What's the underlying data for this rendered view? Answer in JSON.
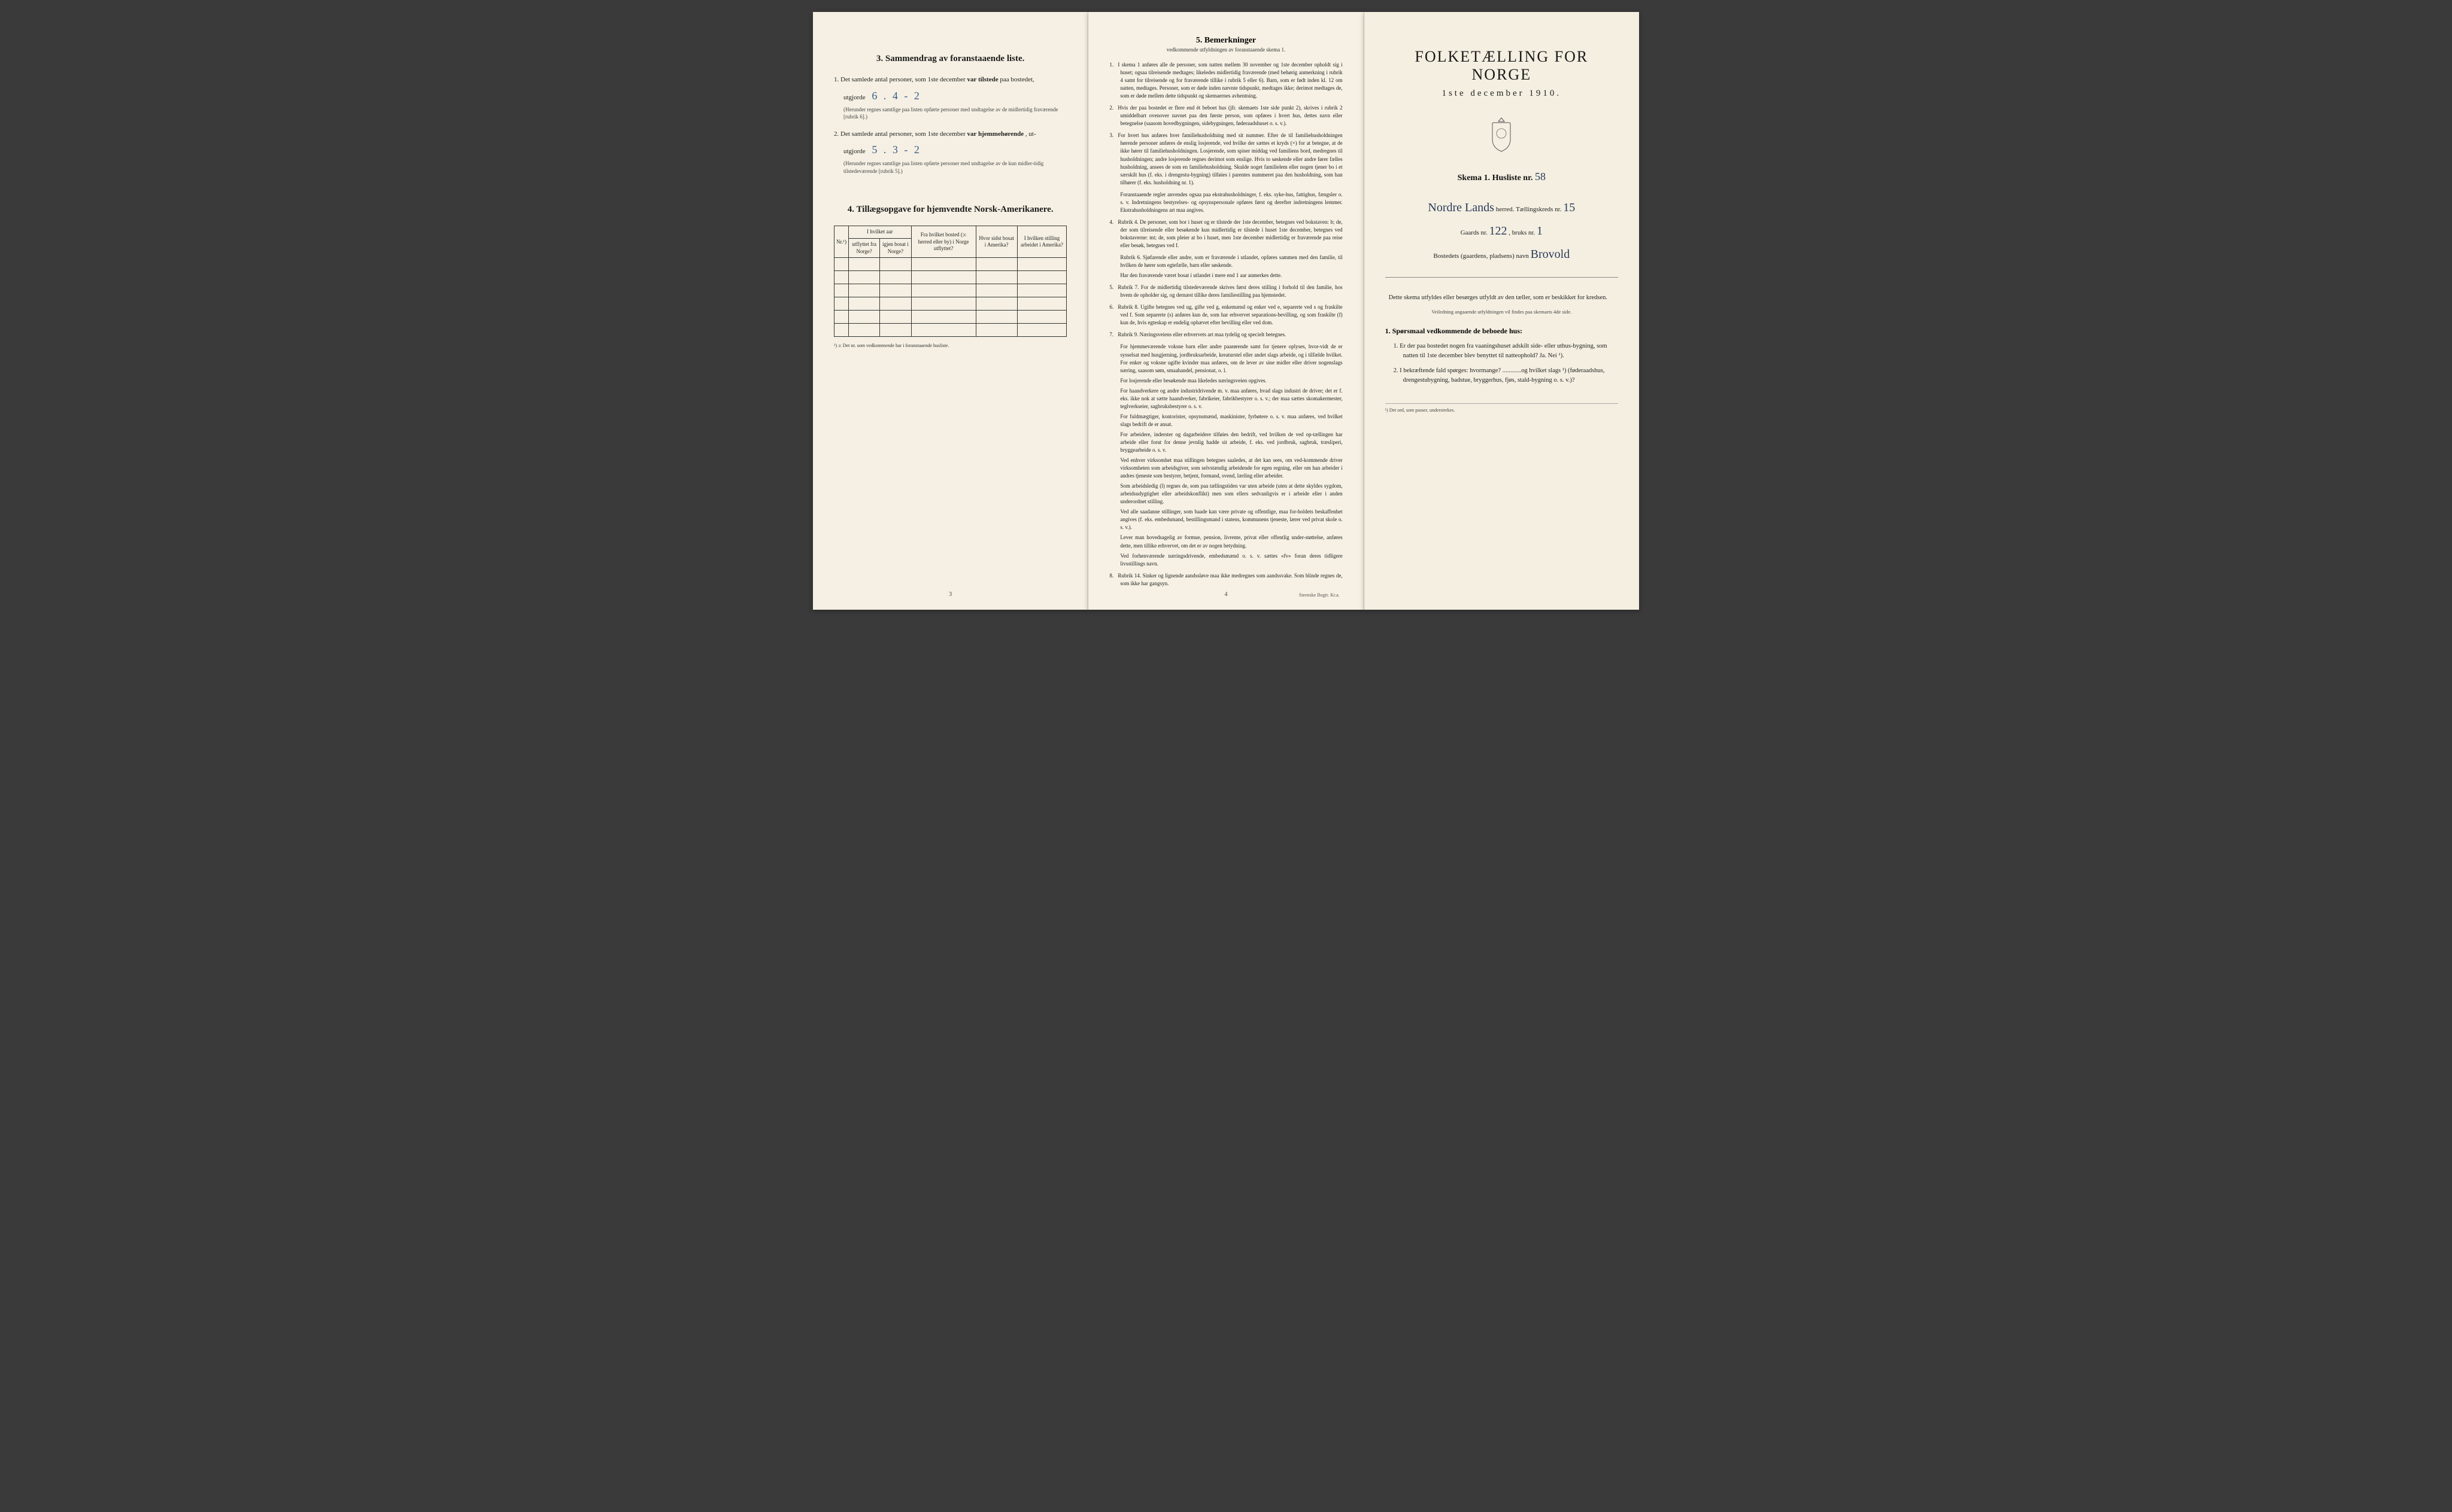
{
  "colors": {
    "paper": "#f4efe2",
    "ink": "#1a1a1a",
    "handwriting": "#3a5a8a",
    "border": "#333333"
  },
  "leftPage": {
    "section3": {
      "heading": "3.  Sammendrag av foranstaaende liste.",
      "item1_prefix": "1.  Det samlede antal personer, som 1ste december",
      "item1_bold": "var tilstede",
      "item1_suffix": "paa bostedet,",
      "utgjorde": "utgjorde",
      "hand1": "6 . 4 - 2",
      "note1": "(Herunder regnes samtlige paa listen opførte personer med undtagelse av de midlertidig fraværende [rubrik 6].)",
      "item2_prefix": "2.  Det samlede antal personer, som 1ste december",
      "item2_bold": "var hjemmehørende",
      "item2_suffix": ", ut-",
      "hand2": "5 .    3 - 2",
      "note2": "(Herunder regnes samtlige paa listen opførte personer med undtagelse av de kun midler-tidig tilstedeværende [rubrik 5].)"
    },
    "section4": {
      "heading": "4.  Tillægsopgave for hjemvendte Norsk-Amerikanere.",
      "cols": [
        "Nr.¹)",
        "I hvilket aar",
        "Fra hvilket bosted (ɔ: herred eller by) i Norge utflyttet?",
        "Hvor sidst bosat i Amerika?",
        "I hvilken stilling arbeidet i Amerika?"
      ],
      "subcols": [
        "utflyttet fra Norge?",
        "igjen bosat i Norge?"
      ],
      "blank_rows": 6,
      "footnote": "¹) ɔ: Det nr. som vedkommende har i foranstaaende husliste."
    },
    "pagenum": "3"
  },
  "middlePage": {
    "heading": "5.  Bemerkninger",
    "sub": "vedkommende utfyldningen av foranstaaende skema 1.",
    "items": [
      {
        "n": "1.",
        "text": "I skema 1 anføres alle de personer, som natten mellem 30 november og 1ste december opholdt sig i huset; ogsaa tilreisende medtages; likeledes midlertidig fraværende (med behørig anmerkning i rubrik 4 samt for tilreisende og for fraværende tillike i rubrik 5 eller 6). Barn, som er født inden kl. 12 om natten, medtages. Personer, som er døde inden nævnte tidspunkt, medtages ikke; derimot medtages de, som er døde mellem dette tidspunkt og skemaernes avhentning."
      },
      {
        "n": "2.",
        "text": "Hvis der paa bostedet er flere end ét beboet hus (jfr. skemaets 1ste side punkt 2), skrives i rubrik 2 umiddelbart ovenover navnet paa den første person, som opføres i hvert hus, dettes navn eller betegnelse (saasom hovedbygningen, sidebygningen, føderaadshuset o. s. v.)."
      },
      {
        "n": "3.",
        "text": "For hvert hus anføres hver familiehusholdning med sit nummer. Efter de til familiehusholdningen hørende personer anføres de enslig losjerende, ved hvilke der sættes et kryds (×) for at betegne, at de ikke hører til familiehusholdningen. Losjerende, som spiser middag ved familiens bord, medregnes til husholdningen; andre losjerende regnes derimot som enslige. Hvis to søskende eller andre fører fælles husholdning, ansees de som en familiehusholdning. Skulde noget familielem eller nogen tjener bo i et særskilt hus (f. eks. i drengestu-bygning) tilføies i parentes nummeret paa den husholdning, som han tilhører (f. eks. husholdning nr. 1)."
      },
      {
        "n": "",
        "text": "Foranstaaende regler anvendes ogsaa paa ekstrahusholdninger, f. eks. syke-hus, fattighus, fængsler o. s. v. Indretningens bestyrelses- og opsynspersonale opføres først og derefter indretningens lemmer. Ekstrahusholdningens art maa angives."
      },
      {
        "n": "4.",
        "text": "Rubrik 4. De personer, som bor i huset og er tilstede der 1ste december, betegnes ved bokstaven: b; de, der som tilreisende eller besøkende kun midlertidig er tilstede i huset 1ste december, betegnes ved bokstaverne: mt; de, som pleier at bo i huset, men 1ste december midlertidig er fraværende paa reise eller besøk, betegnes ved f."
      },
      {
        "n": "",
        "text": "Rubrik 6. Sjøfarende eller andre, som er fraværende i utlandet, opføres sammen med den familie, til hvilken de hører som egtefælle, barn eller søskende."
      },
      {
        "n": "",
        "text": "Har den fraværende været bosat i utlandet i mere end 1 aar anmerkes dette."
      },
      {
        "n": "5.",
        "text": "Rubrik 7. For de midlertidig tilstedeværende skrives først deres stilling i forhold til den familie, hos hvem de opholder sig, og dernæst tillike deres familiestilling paa hjemstedet."
      },
      {
        "n": "6.",
        "text": "Rubrik 8. Ugifte betegnes ved ug, gifte ved g, enkemænd og enker ved e, separerte ved s og fraskilte ved f. Som separerte (s) anføres kun de, som har erhvervet separations-bevilling, og som fraskilte (f) kun de, hvis egteskap er endelig ophævet efter bevilling eller ved dom."
      },
      {
        "n": "7.",
        "text": "Rubrik 9. Næringsveiens eller erhvervets art maa tydelig og specielt betegnes."
      },
      {
        "n": "",
        "text": "For hjemmeværende voksne barn eller andre paarørende samt for tjenere oplyses, hvor-vidt de er sysselsat med husgjerning, jordbruksarbeide, kreaturstel eller andet slags arbeide, og i tilfælde hvilket. For enker og voksne ugifte kvinder maa anføres, om de lever av sine midler eller driver nogenslags næring, saasom søm, smaahandel, pensionat, o. l."
      },
      {
        "n": "",
        "text": "For losjerende eller besøkende maa likeledes næringsveien opgives."
      },
      {
        "n": "",
        "text": "For haandverkere og andre industridrivende m. v. maa anføres, hvad slags industri de driver; det er f. eks. ikke nok at sætte haandverker, fabrikeier, fabrikbestyrer o. s. v.; der maa sættes skomakermester, teglverkseier, sagbruksbestyrer o. s. v."
      },
      {
        "n": "",
        "text": "For fuldmægtiger, kontorister, opsynsmænd, maskinister, fyrbøtere o. s. v. maa anføres, ved hvilket slags bedrift de er ansat."
      },
      {
        "n": "",
        "text": "For arbeidere, inderster og dagarbeidere tilføies den bedrift, ved hvilken de ved op-tællingen har arbeide eller forut for denne jevnlig hadde sit arbeide, f. eks. ved jordbruk, sagbruk, træsliperi, bryggearbeide o. s. v."
      },
      {
        "n": "",
        "text": "Ved enhver virksomhet maa stillingen betegnes saaledes, at det kan sees, om ved-kommende driver virksomheten som arbeidsgiver, som selvstændig arbeidende for egen regning, eller om han arbeider i andres tjeneste som bestyrer, betjent, formand, svend, lærling eller arbeider."
      },
      {
        "n": "",
        "text": "Som arbeidsledig (l) regnes de, som paa tællingstiden var uten arbeide (uten at dette skyldes sygdom, arbeidsudygtighet eller arbeidskonflikt) men som ellers sedvanligvis er i arbeide eller i anden underordnet stilling."
      },
      {
        "n": "",
        "text": "Ved alle saadanne stillinger, som baade kan være private og offentlige, maa for-holdets beskaffenhet angives (f. eks. embedsmand, bestillingsmand i statens, kommunens tjeneste, lærer ved privat skole o. s. v.)."
      },
      {
        "n": "",
        "text": "Lever man hovedsagelig av formue, pension, livrente, privat eller offentlig under-støttelse, anføres dette, men tillike erhvervet, om det er av nogen betydning."
      },
      {
        "n": "",
        "text": "Ved forhenværende næringsdrivende, embedsmænd o. s. v. sættes «fv» foran deres tidligere livsstillings navn."
      },
      {
        "n": "8.",
        "text": "Rubrik 14. Sinker og lignende aandssløve maa ikke medregnes som aandssvake. Som blinde regnes de, som ikke har gangsyn."
      }
    ],
    "pagenum": "4",
    "printer": "Steenske Bogtr. Kr.a."
  },
  "rightPage": {
    "title": "FOLKETÆLLING FOR NORGE",
    "date": "1ste december 1910.",
    "skema_label": "Skema 1.  Husliste nr.",
    "skema_num": "58",
    "herred_val": "Nordre Lands",
    "herred_label": "herred.  Tællingskreds nr.",
    "kreds_num": "15",
    "gaard_label": "Gaards nr.",
    "gaard_num": "122",
    "bruk_label": ", bruks nr.",
    "bruk_num": "1",
    "bosted_label": "Bostedets (gaardens, pladsens) navn",
    "bosted_val": "Brovold",
    "intro": "Dette skema utfyldes eller besørges utfyldt av den tæller, som er beskikket for kredsen.",
    "intro_small": "Veiledning angaaende utfyldningen vil findes paa skemaets 4de side.",
    "q_head": "1.  Spørsmaal vedkommende de beboede hus:",
    "q1": "1.  Er der paa bostedet nogen fra vaaningshuset adskilt side- eller uthus-bygning, som natten til 1ste december blev benyttet til natteophold?  Ja.  Nei ¹).",
    "q2": "2.  I bekræftende fald spørges: hvormange? ............og hvilket slags ¹) (føderaadshus, drengestubygning, badstue, bryggerhus, fjøs, stald-bygning o. s. v.)?",
    "bottom_note": "¹) Det ord, som passer, understrekes."
  }
}
